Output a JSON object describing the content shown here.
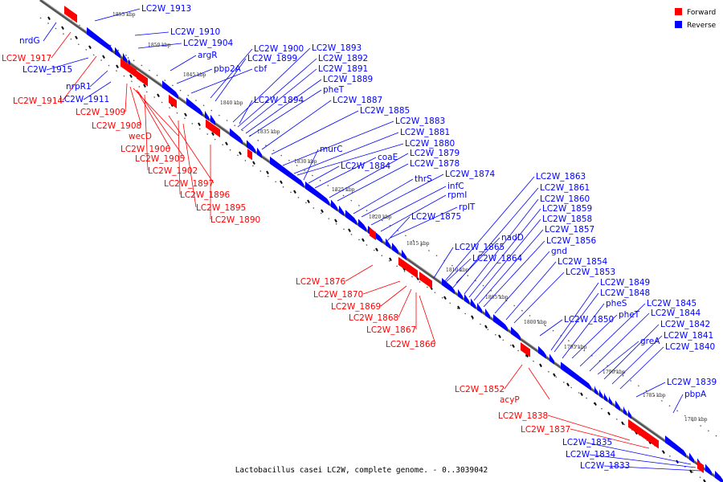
{
  "caption": "Lactobacillus casei LC2W, complete genome. - 0..3039042",
  "legend": [
    {
      "label": "Forward",
      "color": "#ff0000"
    },
    {
      "label": "Reverse",
      "color": "#0000ff"
    }
  ],
  "colors": {
    "forward": "#ff0000",
    "reverse": "#0000ff",
    "backbone": "#555555"
  },
  "scale": {
    "kbp_labels": [
      "1855 kbp",
      "1850 kbp",
      "1845 kbp",
      "1840 kbp",
      "1835 kbp",
      "1830 kbp",
      "1825 kbp",
      "1820 kbp",
      "1815 kbp",
      "1810 kbp",
      "1805 kbp",
      "1800 kbp",
      "1795 kbp",
      "1790 kbp",
      "1785 kbp",
      "1780 kbp"
    ]
  },
  "reverse_labels": [
    "LC2W_1913",
    "nrdG",
    "LC2W_1910",
    "LC2W_1904",
    "argR",
    "LC2W_1915",
    "pbp2A",
    "cbf",
    "nrpR1",
    "LC2W_1911",
    "LC2W_1900",
    "LC2W_1899",
    "LC2W_1893",
    "LC2W_1892",
    "LC2W_1891",
    "LC2W_1889",
    "pheT",
    "LC2W_1894",
    "LC2W_1887",
    "LC2W_1885",
    "LC2W_1883",
    "LC2W_1881",
    "LC2W_1880",
    "murC",
    "coaE",
    "LC2W_1879",
    "LC2W_1878",
    "LC2W_1884",
    "thrS",
    "LC2W_1874",
    "infC",
    "rpmI",
    "rplT",
    "LC2W_1875",
    "LC2W_1863",
    "LC2W_1861",
    "LC2W_1860",
    "LC2W_1859",
    "LC2W_1858",
    "LC2W_1857",
    "LC2W_1856",
    "nadD",
    "LC2W_1865",
    "LC2W_1864",
    "gnd",
    "LC2W_1854",
    "LC2W_1853",
    "LC2W_1849",
    "LC2W_1848",
    "pheS",
    "LC2W_1845",
    "LC2W_1844",
    "pheT",
    "LC2W_1850",
    "LC2W_1842",
    "LC2W_1841",
    "greA",
    "LC2W_1840",
    "LC2W_1839",
    "pbpA",
    "LC2W_1835",
    "LC2W_1834",
    "LC2W_1833"
  ],
  "forward_labels": [
    "LC2W_1917",
    "LC2W_1914",
    "LC2W_1909",
    "LC2W_1908",
    "wecD",
    "LC2W_1906",
    "LC2W_1905",
    "LC2W_1902",
    "LC2W_1897",
    "LC2W_1896",
    "LC2W_1895",
    "LC2W_1890",
    "LC2W_1876",
    "LC2W_1870",
    "LC2W_1869",
    "LC2W_1868",
    "LC2W_1867",
    "LC2W_1866",
    "LC2W_1852",
    "acyP",
    "LC2W_1838",
    "LC2W_1837"
  ]
}
